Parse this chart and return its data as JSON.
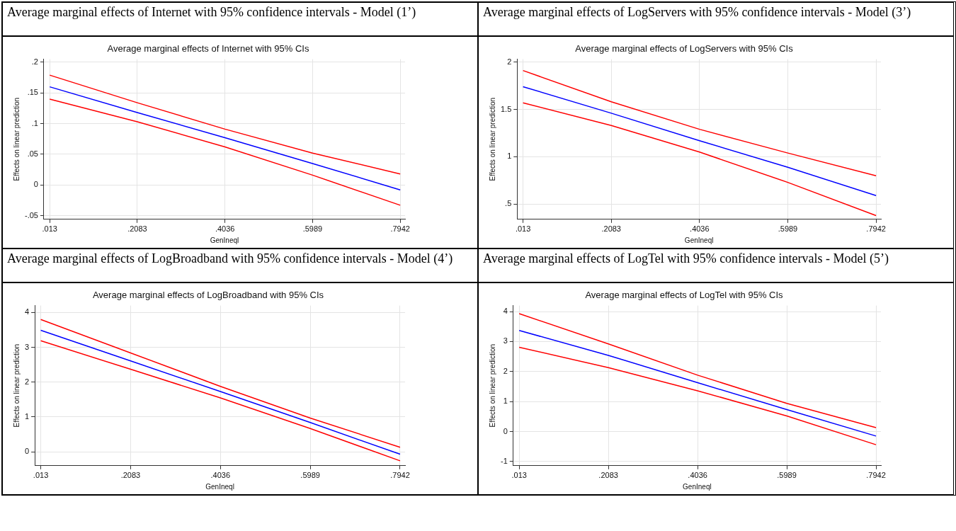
{
  "chart_data": [
    {
      "type": "line",
      "subtitle": "Average marginal effects of Internet with 95% confidence intervals - Model (1’)",
      "title": "Average marginal effects of Internet with 95% CIs",
      "xlabel": "GenIneql",
      "ylabel": "Effects on linear prediction",
      "x": [
        0.013,
        0.2083,
        0.4036,
        0.5989,
        0.7942
      ],
      "xlim": [
        0,
        0.805
      ],
      "xticks": [
        {
          "value": 0.013,
          "label": ".013"
        },
        {
          "value": 0.2083,
          "label": ".2083"
        },
        {
          "value": 0.4036,
          "label": ".4036"
        },
        {
          "value": 0.5989,
          "label": ".5989"
        },
        {
          "value": 0.7942,
          "label": ".7942"
        }
      ],
      "ylim": [
        -0.056,
        0.205
      ],
      "yticks": [
        {
          "value": -0.05,
          "label": "-.05"
        },
        0,
        {
          "value": 0.05,
          "label": ".05"
        },
        {
          "value": 0.1,
          "label": ".1"
        },
        {
          "value": 0.15,
          "label": ".15"
        },
        {
          "value": 0.2,
          "label": ".2"
        }
      ],
      "grid": true,
      "legend": false,
      "marker": "none",
      "line_style": "solid",
      "series": [
        {
          "color": "#ff0000",
          "values": [
            0.179,
            0.134,
            0.091,
            0.052,
            0.018
          ]
        },
        {
          "color": "#0000ff",
          "values": [
            0.16,
            0.118,
            0.077,
            0.035,
            -0.008
          ]
        },
        {
          "color": "#ff0000",
          "values": [
            0.14,
            0.103,
            0.062,
            0.016,
            -0.033
          ]
        }
      ]
    },
    {
      "type": "line",
      "subtitle": "Average marginal effects of LogServers with 95% confidence intervals - Model (3’)",
      "title": "Average marginal effects of LogServers with 95% CIs",
      "xlabel": "GenIneql",
      "ylabel": "Effects on linear prediction",
      "x": [
        0.013,
        0.2083,
        0.4036,
        0.5989,
        0.7942
      ],
      "xlim": [
        0,
        0.805
      ],
      "xticks": [
        {
          "value": 0.013,
          "label": ".013"
        },
        {
          "value": 0.2083,
          "label": ".2083"
        },
        {
          "value": 0.4036,
          "label": ".4036"
        },
        {
          "value": 0.5989,
          "label": ".5989"
        },
        {
          "value": 0.7942,
          "label": ".7942"
        }
      ],
      "ylim": [
        0.34,
        2.03
      ],
      "yticks": [
        {
          "value": 0.5,
          "label": ".5"
        },
        1,
        1.5,
        2
      ],
      "grid": true,
      "legend": false,
      "marker": "none",
      "line_style": "solid",
      "series": [
        {
          "color": "#ff0000",
          "values": [
            1.91,
            1.58,
            1.29,
            1.04,
            0.8
          ]
        },
        {
          "color": "#0000ff",
          "values": [
            1.74,
            1.46,
            1.17,
            0.89,
            0.59
          ]
        },
        {
          "color": "#ff0000",
          "values": [
            1.57,
            1.33,
            1.05,
            0.73,
            0.38
          ]
        }
      ]
    },
    {
      "type": "line",
      "subtitle": "Average marginal effects of LogBroadband with 95% confidence intervals - Model (4’)",
      "title": "Average marginal effects of LogBroadband with 95% CIs",
      "xlabel": "GenIneql",
      "ylabel": "Effects on linear prediction",
      "x": [
        0.013,
        0.2083,
        0.4036,
        0.5989,
        0.7942
      ],
      "xlim": [
        0,
        0.805
      ],
      "xticks": [
        {
          "value": 0.013,
          "label": ".013"
        },
        {
          "value": 0.2083,
          "label": ".2083"
        },
        {
          "value": 0.4036,
          "label": ".4036"
        },
        {
          "value": 0.5989,
          "label": ".5989"
        },
        {
          "value": 0.7942,
          "label": ".7942"
        }
      ],
      "ylim": [
        -0.4,
        4.2
      ],
      "yticks": [
        0,
        1,
        2,
        3,
        4
      ],
      "grid": true,
      "legend": false,
      "marker": "none",
      "line_style": "solid",
      "series": [
        {
          "color": "#ff0000",
          "values": [
            3.8,
            2.84,
            1.88,
            0.97,
            0.13
          ]
        },
        {
          "color": "#0000ff",
          "values": [
            3.49,
            2.61,
            1.73,
            0.84,
            -0.07
          ]
        },
        {
          "color": "#ff0000",
          "values": [
            3.19,
            2.37,
            1.55,
            0.67,
            -0.26
          ]
        }
      ]
    },
    {
      "type": "line",
      "subtitle": "Average marginal effects of LogTel with 95% confidence intervals - Model (5’)",
      "title": "Average marginal effects of LogTel with 95% CIs",
      "xlabel": "GenIneql",
      "ylabel": "Effects on linear prediction",
      "x": [
        0.013,
        0.2083,
        0.4036,
        0.5989,
        0.7942
      ],
      "xlim": [
        0,
        0.805
      ],
      "xticks": [
        {
          "value": 0.013,
          "label": ".013"
        },
        {
          "value": 0.2083,
          "label": ".2083"
        },
        {
          "value": 0.4036,
          "label": ".4036"
        },
        {
          "value": 0.5989,
          "label": ".5989"
        },
        {
          "value": 0.7942,
          "label": ".7942"
        }
      ],
      "ylim": [
        -1.14,
        4.2
      ],
      "yticks": [
        -1,
        0,
        1,
        2,
        3,
        4
      ],
      "grid": true,
      "legend": false,
      "marker": "none",
      "line_style": "solid",
      "series": [
        {
          "color": "#ff0000",
          "values": [
            3.93,
            2.92,
            1.88,
            0.94,
            0.13
          ]
        },
        {
          "color": "#0000ff",
          "values": [
            3.37,
            2.54,
            1.63,
            0.73,
            -0.15
          ]
        },
        {
          "color": "#ff0000",
          "values": [
            2.81,
            2.13,
            1.36,
            0.52,
            -0.44
          ]
        }
      ]
    }
  ]
}
